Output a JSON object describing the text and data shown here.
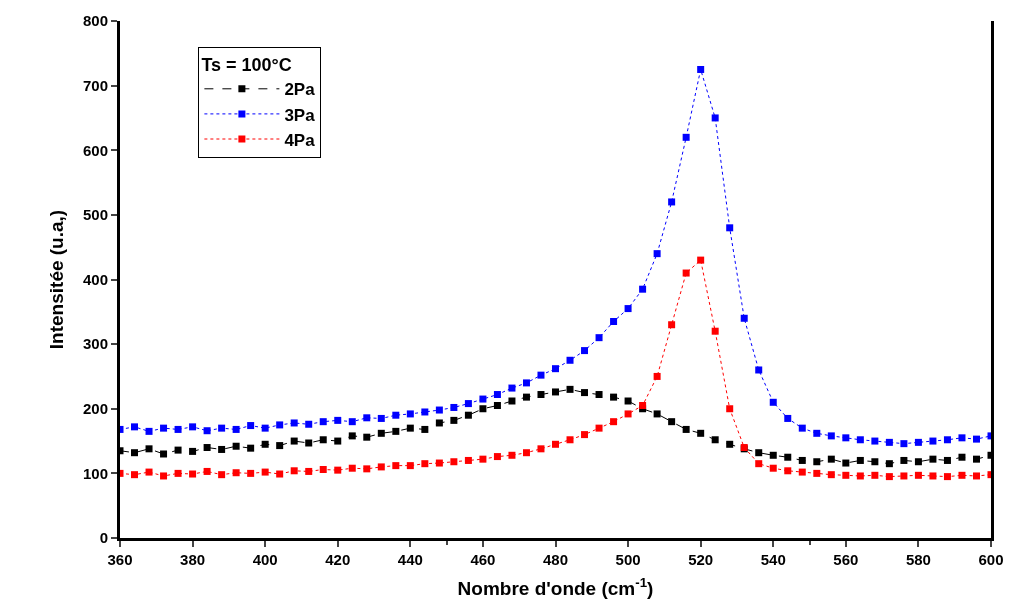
{
  "chart_data": {
    "type": "line",
    "xlabel": "Nombre d'onde (cm$^{-1}$)",
    "ylabel": "Intensitée (u.a,)",
    "legend_title": "Ts = 100°C",
    "legend": "top left",
    "marker": "square",
    "x": [
      360,
      364,
      368,
      372,
      376,
      380,
      384,
      388,
      392,
      396,
      400,
      404,
      408,
      412,
      416,
      420,
      424,
      428,
      432,
      436,
      440,
      444,
      448,
      452,
      456,
      460,
      464,
      468,
      472,
      476,
      480,
      484,
      488,
      492,
      496,
      500,
      504,
      508,
      512,
      516,
      520,
      524,
      528,
      532,
      536,
      540,
      544,
      548,
      552,
      556,
      560,
      564,
      568,
      572,
      576,
      580,
      584,
      588,
      592,
      596,
      600
    ],
    "xlim": [
      360,
      600
    ],
    "xticks": [
      360,
      380,
      400,
      420,
      440,
      460,
      480,
      500,
      520,
      540,
      560,
      580,
      600
    ],
    "ylim": [
      0,
      800
    ],
    "yticks": [
      0,
      100,
      200,
      300,
      400,
      500,
      600,
      700,
      800
    ],
    "series": [
      {
        "name": "2Pa",
        "color": "#000000",
        "line_style": "dashed",
        "values": [
          135,
          132,
          138,
          130,
          136,
          134,
          140,
          137,
          142,
          139,
          145,
          143,
          150,
          147,
          152,
          150,
          158,
          156,
          162,
          165,
          170,
          168,
          178,
          182,
          190,
          200,
          205,
          212,
          218,
          222,
          226,
          230,
          225,
          222,
          218,
          212,
          200,
          192,
          180,
          168,
          162,
          152,
          145,
          138,
          132,
          128,
          125,
          120,
          118,
          122,
          116,
          120,
          118,
          115,
          120,
          118,
          122,
          120,
          125,
          122,
          128
        ]
      },
      {
        "name": "3Pa",
        "color": "#0000ff",
        "line_style": "dotted",
        "values": [
          168,
          172,
          165,
          170,
          168,
          172,
          166,
          170,
          168,
          174,
          170,
          175,
          178,
          176,
          180,
          182,
          180,
          186,
          185,
          190,
          192,
          195,
          198,
          202,
          208,
          215,
          222,
          232,
          240,
          252,
          262,
          275,
          290,
          310,
          335,
          355,
          385,
          440,
          520,
          620,
          725,
          650,
          480,
          340,
          260,
          210,
          185,
          170,
          162,
          158,
          155,
          152,
          150,
          148,
          146,
          148,
          150,
          152,
          155,
          153,
          158
        ]
      },
      {
        "name": "4Pa",
        "color": "#ff0000",
        "line_style": "dotted",
        "values": [
          100,
          98,
          102,
          96,
          100,
          99,
          103,
          98,
          101,
          100,
          102,
          99,
          104,
          103,
          106,
          105,
          108,
          107,
          110,
          112,
          112,
          115,
          116,
          118,
          120,
          122,
          126,
          128,
          132,
          138,
          145,
          152,
          160,
          170,
          180,
          192,
          205,
          250,
          330,
          410,
          430,
          320,
          200,
          140,
          115,
          108,
          104,
          102,
          100,
          98,
          97,
          96,
          97,
          95,
          96,
          97,
          96,
          95,
          97,
          96,
          98
        ]
      }
    ]
  }
}
